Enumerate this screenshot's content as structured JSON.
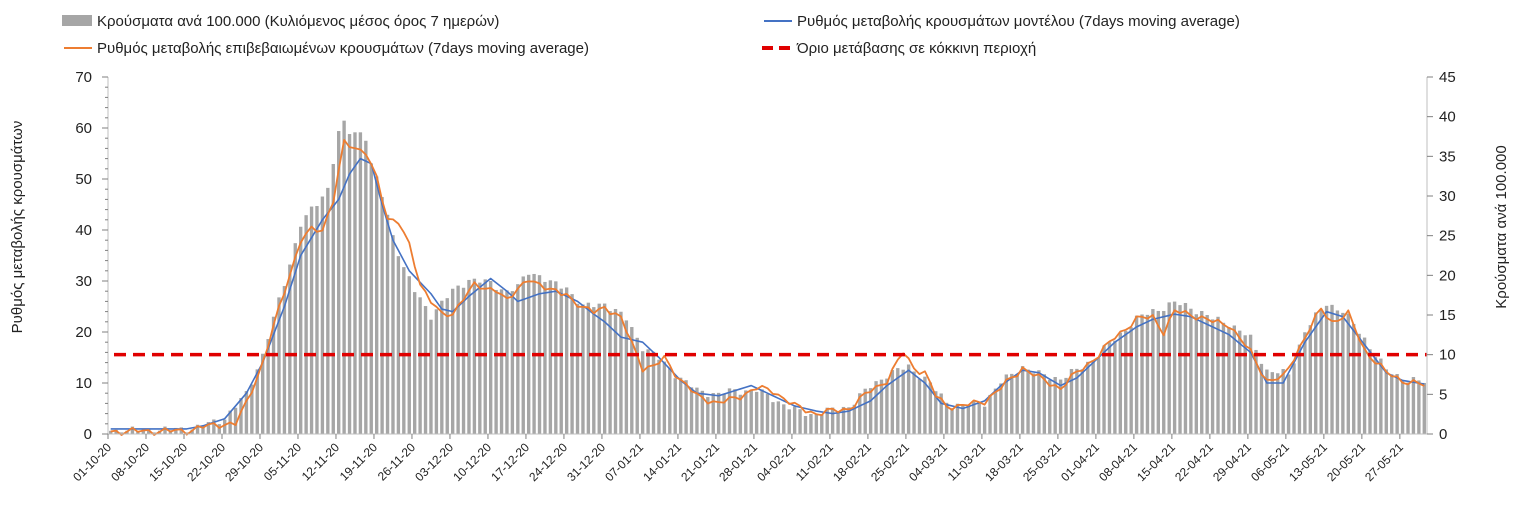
{
  "chart_data": {
    "type": "bar+line",
    "legend": {
      "placement": "top",
      "items": [
        {
          "key": "bars",
          "label": "Κρούσματα ανά 100.000 (Κυλιόμενος μέσος όρος 7 ημερών)",
          "color": "#a6a6a6",
          "kind": "bar"
        },
        {
          "key": "model",
          "label": "Ρυθμός μεταβολής κρουσμάτων μοντέλου (7days moving average)",
          "color": "#4472c4",
          "kind": "line"
        },
        {
          "key": "confirmed",
          "label": "Ρυθμός μεταβολής επιβεβαιωμένων κρουσμάτων (7days moving average)",
          "color": "#ed7d31",
          "kind": "line"
        },
        {
          "key": "threshold",
          "label": "Όριο μετάβασης σε κόκκινη περιοχή",
          "color": "#e00000",
          "kind": "dash"
        }
      ]
    },
    "ylabel_left": "Ρυθμός μεταβολής κρουσμάτων",
    "ylabel_right": "Κρούσματα ανά 100.000",
    "ylim_left": [
      0,
      70
    ],
    "yticks_left": [
      0,
      10,
      20,
      30,
      40,
      50,
      60,
      70
    ],
    "ylim_right": [
      0,
      45
    ],
    "yticks_right": [
      0,
      5,
      10,
      15,
      20,
      25,
      30,
      35,
      40,
      45
    ],
    "x_start": "01-10-20",
    "x_end": "31-05-21",
    "x_ticks": [
      "01-10-20",
      "08-10-20",
      "15-10-20",
      "22-10-20",
      "29-10-20",
      "05-11-20",
      "12-11-20",
      "19-11-20",
      "26-11-20",
      "03-12-20",
      "10-12-20",
      "17-12-20",
      "24-12-20",
      "31-12-20",
      "07-01-21",
      "14-01-21",
      "21-01-21",
      "28-01-21",
      "04-02-21",
      "11-02-21",
      "18-02-21",
      "25-02-21",
      "04-03-21",
      "11-03-21",
      "18-03-21",
      "25-03-21",
      "01-04-21",
      "08-04-21",
      "15-04-21",
      "22-04-21",
      "29-04-21",
      "06-05-21",
      "13-05-21",
      "20-05-21",
      "27-05-21"
    ],
    "grid": false,
    "threshold_right": 10,
    "bars_right_axis_anchors": [
      [
        "01-10-20",
        0.4
      ],
      [
        "08-10-20",
        0.5
      ],
      [
        "15-10-20",
        0.6
      ],
      [
        "18-10-20",
        1.0
      ],
      [
        "22-10-20",
        2.0
      ],
      [
        "26-10-20",
        5.0
      ],
      [
        "29-10-20",
        10.0
      ],
      [
        "02-11-20",
        19.0
      ],
      [
        "05-11-20",
        26.5
      ],
      [
        "08-11-20",
        29.0
      ],
      [
        "10-11-20",
        31.0
      ],
      [
        "12-11-20",
        38.0
      ],
      [
        "13-11-20",
        39.0
      ],
      [
        "14-11-20",
        38.0
      ],
      [
        "16-11-20",
        38.0
      ],
      [
        "17-11-20",
        37.5
      ],
      [
        "18-11-20",
        34.0
      ],
      [
        "20-11-20",
        30.0
      ],
      [
        "22-11-20",
        25.0
      ],
      [
        "24-11-20",
        21.0
      ],
      [
        "26-11-20",
        18.0
      ],
      [
        "29-11-20",
        15.0
      ],
      [
        "03-12-20",
        18.0
      ],
      [
        "06-12-20",
        19.5
      ],
      [
        "10-12-20",
        19.0
      ],
      [
        "13-12-20",
        18.0
      ],
      [
        "15-12-20",
        18.5
      ],
      [
        "17-12-20",
        20.5
      ],
      [
        "19-12-20",
        20.0
      ],
      [
        "21-12-20",
        19.0
      ],
      [
        "24-12-20",
        18.5
      ],
      [
        "27-12-20",
        16.0
      ],
      [
        "31-12-20",
        16.5
      ],
      [
        "04-01-21",
        14.5
      ],
      [
        "07-01-21",
        11.0
      ],
      [
        "10-01-21",
        9.5
      ],
      [
        "14-01-21",
        7.0
      ],
      [
        "17-01-21",
        5.5
      ],
      [
        "21-01-21",
        5.0
      ],
      [
        "24-01-21",
        5.5
      ],
      [
        "28-01-21",
        5.5
      ],
      [
        "31-01-21",
        4.5
      ],
      [
        "04-02-21",
        3.0
      ],
      [
        "07-02-21",
        2.5
      ],
      [
        "11-02-21",
        3.0
      ],
      [
        "14-02-21",
        3.5
      ],
      [
        "18-02-21",
        6.0
      ],
      [
        "21-02-21",
        7.5
      ],
      [
        "25-02-21",
        8.5
      ],
      [
        "28-02-21",
        7.0
      ],
      [
        "04-03-21",
        4.0
      ],
      [
        "07-03-21",
        3.5
      ],
      [
        "11-03-21",
        4.0
      ],
      [
        "14-03-21",
        6.5
      ],
      [
        "18-03-21",
        8.5
      ],
      [
        "21-03-21",
        7.5
      ],
      [
        "25-03-21",
        7.0
      ],
      [
        "28-03-21",
        8.0
      ],
      [
        "01-04-21",
        10.0
      ],
      [
        "04-04-21",
        12.0
      ],
      [
        "08-04-21",
        14.5
      ],
      [
        "11-04-21",
        15.5
      ],
      [
        "15-04-21",
        16.5
      ],
      [
        "18-04-21",
        16.0
      ],
      [
        "22-04-21",
        14.5
      ],
      [
        "25-04-21",
        14.0
      ],
      [
        "29-04-21",
        12.0
      ],
      [
        "02-05-21",
        8.0
      ],
      [
        "06-05-21",
        7.5
      ],
      [
        "09-05-21",
        13.0
      ],
      [
        "13-05-21",
        16.5
      ],
      [
        "16-05-21",
        15.5
      ],
      [
        "20-05-21",
        12.0
      ],
      [
        "24-05-21",
        8.0
      ],
      [
        "27-05-21",
        7.0
      ],
      [
        "31-05-21",
        6.5
      ]
    ],
    "model_left_axis_anchors": [
      [
        "01-10-20",
        1.0
      ],
      [
        "15-10-20",
        1.0
      ],
      [
        "18-10-20",
        1.6
      ],
      [
        "22-10-20",
        3.0
      ],
      [
        "26-10-20",
        8.0
      ],
      [
        "29-10-20",
        14.0
      ],
      [
        "02-11-20",
        25.0
      ],
      [
        "05-11-20",
        35.0
      ],
      [
        "09-11-20",
        42.0
      ],
      [
        "12-11-20",
        46.0
      ],
      [
        "14-11-20",
        51.0
      ],
      [
        "16-11-20",
        54.0
      ],
      [
        "18-11-20",
        53.0
      ],
      [
        "20-11-20",
        45.0
      ],
      [
        "22-11-20",
        38.0
      ],
      [
        "25-11-20",
        32.0
      ],
      [
        "29-11-20",
        27.5
      ],
      [
        "01-12-20",
        24.5
      ],
      [
        "03-12-20",
        24.0
      ],
      [
        "06-12-20",
        27.0
      ],
      [
        "10-12-20",
        30.5
      ],
      [
        "13-12-20",
        28.0
      ],
      [
        "15-12-20",
        26.0
      ],
      [
        "19-12-20",
        27.5
      ],
      [
        "22-12-20",
        28.0
      ],
      [
        "26-12-20",
        26.0
      ],
      [
        "29-12-20",
        23.5
      ],
      [
        "31-12-20",
        22.0
      ],
      [
        "03-01-21",
        19.0
      ],
      [
        "07-01-21",
        18.0
      ],
      [
        "10-01-21",
        15.0
      ],
      [
        "14-01-21",
        10.5
      ],
      [
        "17-01-21",
        8.0
      ],
      [
        "21-01-21",
        7.5
      ],
      [
        "24-01-21",
        8.5
      ],
      [
        "27-01-21",
        9.5
      ],
      [
        "30-01-21",
        8.0
      ],
      [
        "04-02-21",
        5.5
      ],
      [
        "08-02-21",
        4.5
      ],
      [
        "11-02-21",
        4.0
      ],
      [
        "14-02-21",
        4.5
      ],
      [
        "18-02-21",
        6.5
      ],
      [
        "21-02-21",
        9.5
      ],
      [
        "25-02-21",
        12.5
      ],
      [
        "28-02-21",
        10.0
      ],
      [
        "03-03-21",
        6.0
      ],
      [
        "07-03-21",
        5.0
      ],
      [
        "11-03-21",
        6.5
      ],
      [
        "14-03-21",
        9.5
      ],
      [
        "18-03-21",
        12.5
      ],
      [
        "21-03-21",
        12.0
      ],
      [
        "25-03-21",
        9.5
      ],
      [
        "28-03-21",
        11.0
      ],
      [
        "01-04-21",
        15.0
      ],
      [
        "04-04-21",
        18.0
      ],
      [
        "08-04-21",
        21.0
      ],
      [
        "11-04-21",
        22.5
      ],
      [
        "15-04-21",
        23.5
      ],
      [
        "18-04-21",
        23.0
      ],
      [
        "22-04-21",
        21.0
      ],
      [
        "25-04-21",
        19.5
      ],
      [
        "29-04-21",
        16.0
      ],
      [
        "02-05-21",
        10.0
      ],
      [
        "05-05-21",
        10.0
      ],
      [
        "09-05-21",
        18.0
      ],
      [
        "13-05-21",
        24.0
      ],
      [
        "16-05-21",
        23.0
      ],
      [
        "20-05-21",
        17.5
      ],
      [
        "24-05-21",
        12.0
      ],
      [
        "27-05-21",
        10.5
      ],
      [
        "31-05-21",
        9.8
      ]
    ],
    "confirmed_left_axis_anchors": [
      [
        "01-10-20",
        0.5
      ],
      [
        "15-10-20",
        0.6
      ],
      [
        "18-10-20",
        1.4
      ],
      [
        "22-10-20",
        2.0
      ],
      [
        "24-10-20",
        2.0
      ],
      [
        "26-10-20",
        6.0
      ],
      [
        "29-10-20",
        14.0
      ],
      [
        "02-11-20",
        28.0
      ],
      [
        "05-11-20",
        38.0
      ],
      [
        "07-11-20",
        40.0
      ],
      [
        "09-11-20",
        40.0
      ],
      [
        "11-11-20",
        46.0
      ],
      [
        "13-11-20",
        57.0
      ],
      [
        "15-11-20",
        56.0
      ],
      [
        "17-11-20",
        55.5
      ],
      [
        "19-11-20",
        50.0
      ],
      [
        "21-11-20",
        42.0
      ],
      [
        "23-11-20",
        42.0
      ],
      [
        "25-11-20",
        37.0
      ],
      [
        "27-11-20",
        29.0
      ],
      [
        "29-11-20",
        26.5
      ],
      [
        "01-12-20",
        23.5
      ],
      [
        "03-12-20",
        23.0
      ],
      [
        "05-12-20",
        27.0
      ],
      [
        "07-12-20",
        29.5
      ],
      [
        "09-12-20",
        28.0
      ],
      [
        "11-12-20",
        28.5
      ],
      [
        "13-12-20",
        26.5
      ],
      [
        "15-12-20",
        28.0
      ],
      [
        "17-12-20",
        30.5
      ],
      [
        "19-12-20",
        29.5
      ],
      [
        "21-12-20",
        28.0
      ],
      [
        "24-12-20",
        27.5
      ],
      [
        "27-12-20",
        24.5
      ],
      [
        "29-12-20",
        24.0
      ],
      [
        "31-12-20",
        25.0
      ],
      [
        "03-01-21",
        22.5
      ],
      [
        "05-01-21",
        18.0
      ],
      [
        "07-01-21",
        13.0
      ],
      [
        "09-01-21",
        13.0
      ],
      [
        "11-01-21",
        15.0
      ],
      [
        "14-01-21",
        10.5
      ],
      [
        "17-01-21",
        7.5
      ],
      [
        "21-01-21",
        6.0
      ],
      [
        "24-01-21",
        7.0
      ],
      [
        "28-01-21",
        9.0
      ],
      [
        "31-01-21",
        8.5
      ],
      [
        "04-02-21",
        5.5
      ],
      [
        "08-02-21",
        4.0
      ],
      [
        "11-02-21",
        4.5
      ],
      [
        "14-02-21",
        5.0
      ],
      [
        "18-02-21",
        8.5
      ],
      [
        "21-02-21",
        10.5
      ],
      [
        "24-02-21",
        16.0
      ],
      [
        "26-02-21",
        13.0
      ],
      [
        "28-02-21",
        12.0
      ],
      [
        "02-03-21",
        7.5
      ],
      [
        "04-03-21",
        5.5
      ],
      [
        "07-03-21",
        5.5
      ],
      [
        "11-03-21",
        6.5
      ],
      [
        "14-03-21",
        9.0
      ],
      [
        "18-03-21",
        13.0
      ],
      [
        "21-03-21",
        11.0
      ],
      [
        "25-03-21",
        9.0
      ],
      [
        "28-03-21",
        12.0
      ],
      [
        "01-04-21",
        15.5
      ],
      [
        "04-04-21",
        19.0
      ],
      [
        "08-04-21",
        22.5
      ],
      [
        "11-04-21",
        23.0
      ],
      [
        "13-04-21",
        20.0
      ],
      [
        "15-04-21",
        24.0
      ],
      [
        "18-04-21",
        23.5
      ],
      [
        "22-04-21",
        22.0
      ],
      [
        "25-04-21",
        21.5
      ],
      [
        "29-04-21",
        16.0
      ],
      [
        "02-05-21",
        10.5
      ],
      [
        "05-05-21",
        11.0
      ],
      [
        "09-05-21",
        19.0
      ],
      [
        "12-05-21",
        24.5
      ],
      [
        "14-05-21",
        22.0
      ],
      [
        "17-05-21",
        23.5
      ],
      [
        "20-05-21",
        16.5
      ],
      [
        "24-05-21",
        12.0
      ],
      [
        "27-05-21",
        10.5
      ],
      [
        "31-05-21",
        9.5
      ]
    ]
  }
}
